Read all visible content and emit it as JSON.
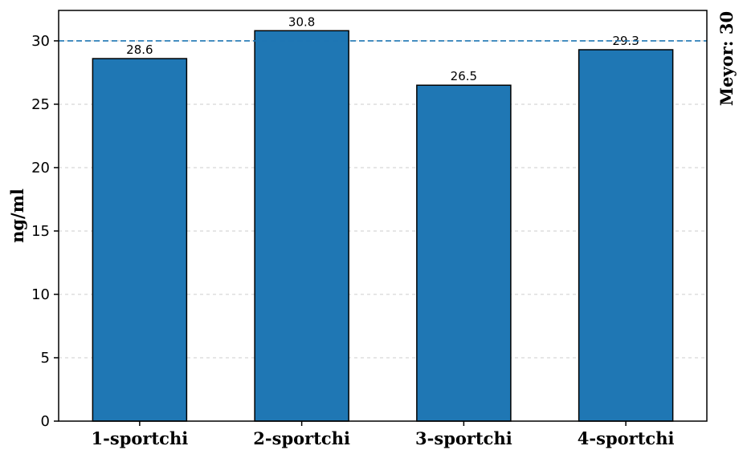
{
  "chart_data": {
    "type": "bar",
    "categories": [
      "1-sportchi",
      "2-sportchi",
      "3-sportchi",
      "4-sportchi"
    ],
    "values": [
      28.6,
      30.8,
      26.5,
      29.3
    ],
    "value_labels": [
      "28.6",
      "30.8",
      "26.5",
      "29.3"
    ],
    "xlabel": "",
    "ylabel": "ng/ml",
    "ylim": [
      0,
      32.4
    ],
    "yticks": [
      0,
      5,
      10,
      15,
      20,
      25,
      30
    ],
    "grid": "horizontal dashed",
    "reference_line": {
      "value": 30,
      "label": "Meyor: 30",
      "style": "dashed"
    },
    "colors": {
      "bar": "#1f77b4",
      "bar_edge": "#000000",
      "reference": "#1f77b4",
      "grid": "#cccccc"
    }
  }
}
